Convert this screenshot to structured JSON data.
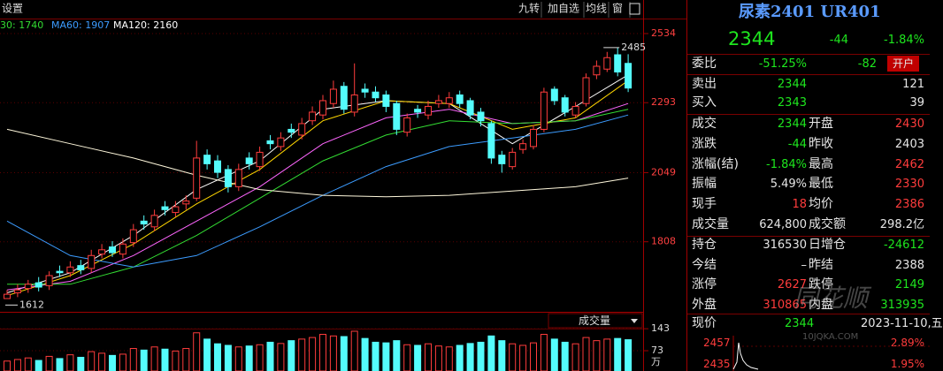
{
  "toolbar": {
    "left": "设置",
    "buttons": [
      "九转",
      "加自选",
      "均线",
      "窗"
    ]
  },
  "chart_data": {
    "type": "candlestick",
    "ma_legend": [
      "30: 1740",
      "MA60: 1907",
      "MA120: 2160"
    ],
    "open": [
      1610,
      1630,
      1645,
      1665,
      1655,
      1705,
      1700,
      1725,
      1715,
      1765,
      1790,
      1765,
      1805,
      1880,
      1860,
      1930,
      1910,
      1940,
      1960,
      2110,
      2090,
      2060,
      2000,
      2100,
      2070,
      2160,
      2140,
      2200,
      2180,
      2230,
      2250,
      2290,
      2350,
      2260,
      2340,
      2330,
      2320,
      2290,
      2190,
      2270,
      2250,
      2290,
      2290,
      2320,
      2300,
      2260,
      2220,
      2110,
      2070,
      2130,
      2140,
      2200,
      2340,
      2310,
      2250,
      2290,
      2390,
      2410,
      2460,
      2430
    ],
    "high": [
      1640,
      1660,
      1675,
      1685,
      1705,
      1725,
      1740,
      1745,
      1780,
      1800,
      1810,
      1820,
      1870,
      1900,
      1920,
      1950,
      1950,
      1970,
      2160,
      2130,
      2110,
      2075,
      2080,
      2120,
      2140,
      2180,
      2190,
      2220,
      2240,
      2280,
      2320,
      2370,
      2365,
      2430,
      2360,
      2350,
      2335,
      2300,
      2255,
      2285,
      2300,
      2320,
      2330,
      2335,
      2310,
      2275,
      2230,
      2125,
      2135,
      2165,
      2215,
      2345,
      2350,
      2320,
      2295,
      2395,
      2440,
      2470,
      2485,
      2462
    ],
    "low": [
      1612,
      1615,
      1630,
      1635,
      1640,
      1685,
      1685,
      1695,
      1700,
      1750,
      1755,
      1750,
      1790,
      1850,
      1845,
      1900,
      1895,
      1920,
      1950,
      2060,
      2030,
      1980,
      1985,
      2060,
      2055,
      2130,
      2125,
      2170,
      2165,
      2215,
      2235,
      2275,
      2255,
      2245,
      2310,
      2295,
      2260,
      2180,
      2175,
      2240,
      2235,
      2275,
      2275,
      2275,
      2235,
      2210,
      2080,
      2049,
      2060,
      2115,
      2130,
      2190,
      2285,
      2245,
      2240,
      2280,
      2375,
      2400,
      2385,
      2330
    ],
    "close": [
      1625,
      1640,
      1660,
      1650,
      1690,
      1700,
      1720,
      1710,
      1760,
      1780,
      1770,
      1800,
      1850,
      1870,
      1900,
      1920,
      1930,
      1950,
      2100,
      2080,
      2050,
      2000,
      2060,
      2080,
      2120,
      2150,
      2170,
      2190,
      2220,
      2260,
      2300,
      2340,
      2270,
      2320,
      2330,
      2310,
      2280,
      2200,
      2240,
      2260,
      2280,
      2300,
      2310,
      2290,
      2250,
      2230,
      2100,
      2080,
      2120,
      2150,
      2200,
      2330,
      2300,
      2260,
      2280,
      2380,
      2420,
      2450,
      2400,
      2344
    ],
    "ylim": [
      1573,
      2574
    ],
    "yticks": [
      2534,
      2293,
      2049,
      1808
    ],
    "grid": true,
    "up_color": "#ff3c3c",
    "down_color": "#54fcfc",
    "high_marker": 2485,
    "low_marker": 1612,
    "series": [
      {
        "color": "#ffffff",
        "x": [
          0,
          6,
          12,
          18,
          24,
          30,
          36,
          42,
          48,
          54,
          59
        ],
        "values": [
          1630,
          1700,
          1830,
          1990,
          2090,
          2270,
          2300,
          2290,
          2150,
          2280,
          2390
        ]
      },
      {
        "color": "#ffd700",
        "x": [
          0,
          6,
          12,
          18,
          24,
          30,
          36,
          42,
          48,
          54,
          59
        ],
        "values": [
          1620,
          1690,
          1800,
          1940,
          2060,
          2230,
          2300,
          2290,
          2200,
          2240,
          2370
        ]
      },
      {
        "color": "#ff66ff",
        "x": [
          0,
          6,
          12,
          18,
          24,
          30,
          36,
          42,
          48,
          54,
          59
        ],
        "values": [
          1640,
          1670,
          1760,
          1880,
          2000,
          2150,
          2240,
          2270,
          2220,
          2230,
          2290
        ]
      },
      {
        "color": "#33dd33",
        "x": [
          0,
          6,
          12,
          18,
          24,
          30,
          36,
          42,
          48,
          54,
          59
        ],
        "values": [
          1660,
          1660,
          1720,
          1830,
          1960,
          2090,
          2180,
          2230,
          2220,
          2230,
          2270
        ]
      },
      {
        "color": "#3c9cff",
        "x": [
          0,
          6,
          12,
          18,
          24,
          30,
          36,
          42,
          48,
          54,
          59
        ],
        "values": [
          1880,
          1760,
          1720,
          1760,
          1860,
          1970,
          2070,
          2140,
          2170,
          2200,
          2250
        ]
      },
      {
        "color": "#fff8dc",
        "x": [
          0,
          6,
          12,
          18,
          24,
          30,
          36,
          42,
          48,
          54,
          59
        ],
        "values": [
          2200,
          2150,
          2100,
          2040,
          1990,
          1970,
          1965,
          1970,
          1985,
          2000,
          2030
        ]
      }
    ],
    "volume": {
      "title": "成交量",
      "values": [
        40,
        45,
        50,
        42,
        55,
        48,
        60,
        52,
        70,
        65,
        58,
        62,
        80,
        75,
        85,
        78,
        72,
        80,
        130,
        110,
        95,
        90,
        85,
        88,
        92,
        100,
        96,
        105,
        110,
        115,
        125,
        120,
        118,
        135,
        112,
        100,
        98,
        105,
        92,
        90,
        95,
        88,
        85,
        90,
        96,
        100,
        120,
        105,
        95,
        90,
        98,
        125,
        110,
        100,
        95,
        115,
        105,
        110,
        112,
        108
      ],
      "ylim": [
        14,
        149
      ],
      "yticks": [
        143,
        73
      ],
      "unit": "万"
    }
  },
  "quote": {
    "title": "尿素2401 UR401",
    "price": 2344,
    "change": -44,
    "change_pct": "-1.84%",
    "ratio": {
      "label": "委比",
      "pct": "-51.25%",
      "diff": -82,
      "button": "开户"
    },
    "sell": {
      "label": "卖出",
      "price": 2344,
      "qty": 121
    },
    "buy": {
      "label": "买入",
      "price": 2343,
      "qty": 39
    },
    "rows": [
      [
        "成交",
        2344,
        "开盘",
        2430
      ],
      [
        "涨跌",
        -44,
        "昨收",
        2403
      ],
      [
        "涨幅(结)",
        "-1.84%",
        "最高",
        2462
      ],
      [
        "振幅",
        "5.49%",
        "最低",
        2330
      ],
      [
        "现手",
        18,
        "均价",
        2386
      ],
      [
        "成交量",
        "624,800",
        "成交额",
        "298.2亿"
      ],
      [
        "持仓",
        316530,
        "日增仓",
        -24612
      ],
      [
        "今结",
        "–",
        "昨结",
        2388
      ],
      [
        "涨停",
        2627,
        "跌停",
        2149
      ],
      [
        "外盘",
        310865,
        "内盘",
        313935
      ]
    ],
    "tick": {
      "label": "现价",
      "price": 2344,
      "time": "2023-11-10,五"
    },
    "mini": {
      "levels": [
        2457,
        2435
      ],
      "pcts": [
        "2.89%",
        "1.95%"
      ]
    },
    "watermark": {
      "brand": "同花顺",
      "site": "10JQKA.COM"
    }
  }
}
